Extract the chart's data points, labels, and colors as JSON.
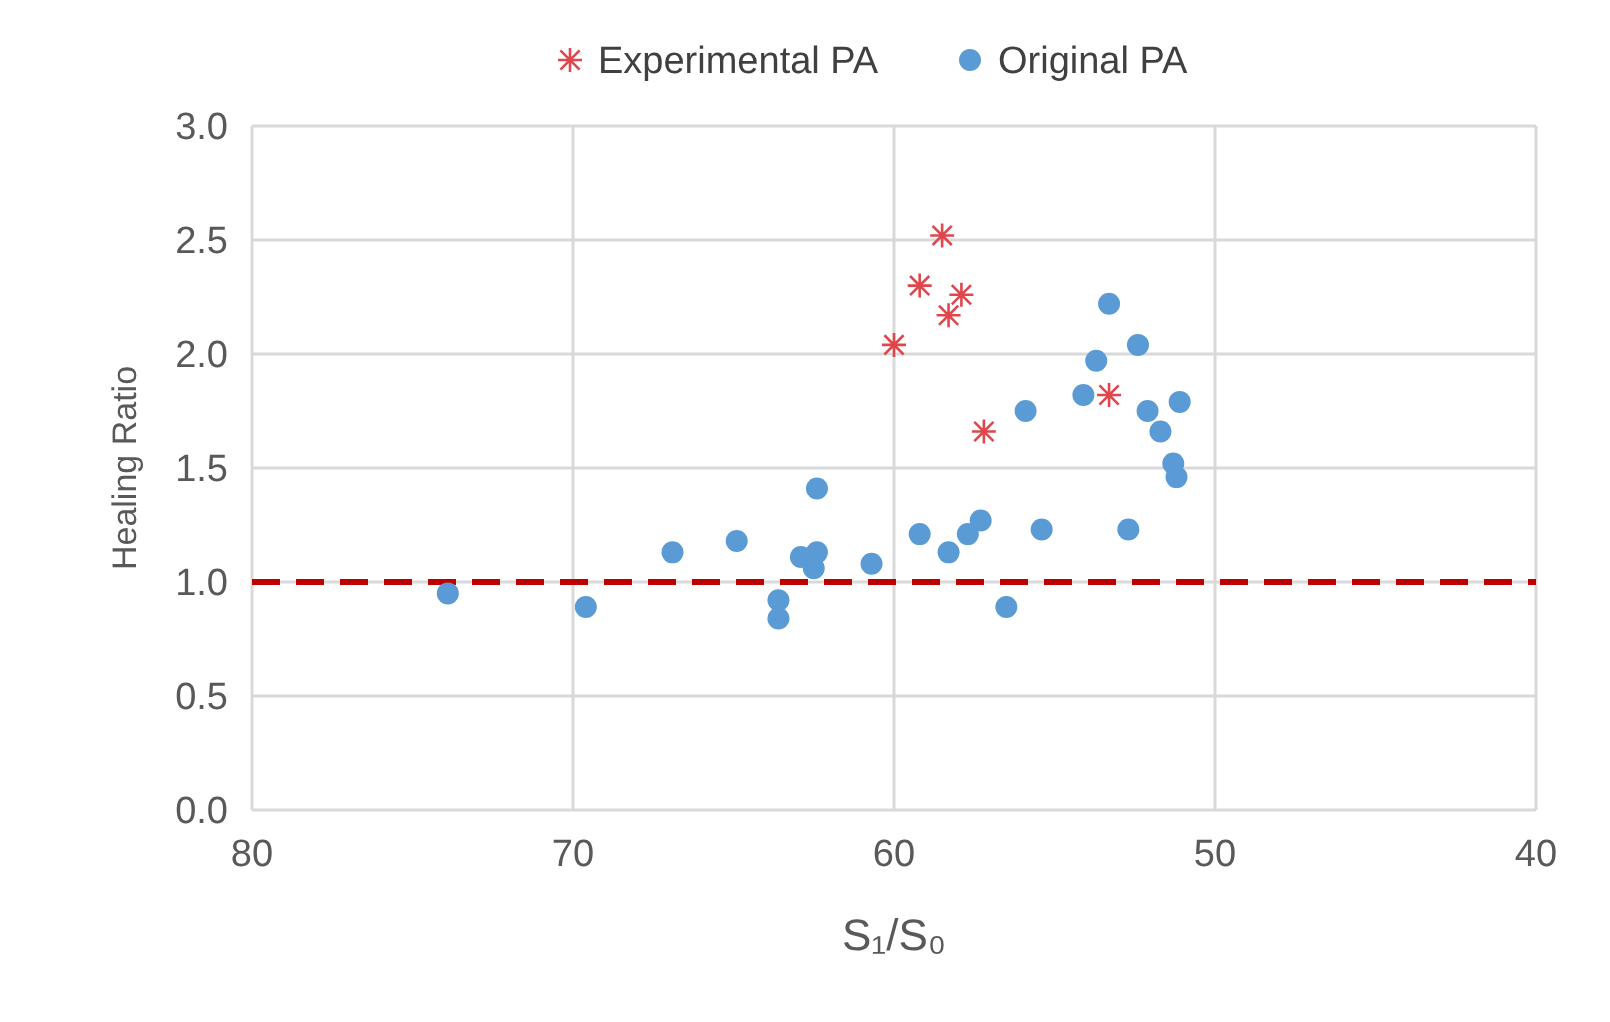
{
  "chart_data": {
    "type": "scatter",
    "xlabel": "S₁/S₀",
    "ylabel": "Healing Ratio",
    "xlim": [
      80,
      40
    ],
    "xticks": [
      80,
      70,
      60,
      50,
      40
    ],
    "ylim": [
      0,
      3
    ],
    "yticks": [
      {
        "value": 0,
        "label": "0.0"
      },
      {
        "value": 0.5,
        "label": "0.5"
      },
      {
        "value": 1,
        "label": "1.0"
      },
      {
        "value": 1.5,
        "label": "1.5"
      },
      {
        "value": 2,
        "label": "2.0"
      },
      {
        "value": 2.5,
        "label": "2.5"
      },
      {
        "value": 3,
        "label": "3.0"
      }
    ],
    "grid": true,
    "legend": "top",
    "ref_lines": [
      {
        "axis": "y",
        "value": 1,
        "color": "#c00000",
        "line_style": "dashed"
      }
    ],
    "series": [
      {
        "name": "Experimental PA",
        "color": "#e0474c",
        "marker": "cross",
        "x": [
          60.0,
          59.2,
          58.5,
          58.3,
          57.9,
          57.2,
          53.3
        ],
        "values": [
          2.04,
          2.3,
          2.52,
          2.17,
          2.26,
          1.66,
          1.82
        ]
      },
      {
        "name": "Original PA",
        "color": "#5b9bd5",
        "marker": "circle",
        "x": [
          73.9,
          69.6,
          66.9,
          64.9,
          63.6,
          63.6,
          62.9,
          62.5,
          62.4,
          62.4,
          60.7,
          59.2,
          58.3,
          57.7,
          57.3,
          56.5,
          55.4,
          55.9,
          54.1,
          53.7,
          53.3,
          52.4,
          52.1,
          51.7,
          51.3,
          51.2,
          51.1,
          52.7
        ],
        "values": [
          0.95,
          0.89,
          1.13,
          1.18,
          0.92,
          0.84,
          1.11,
          1.06,
          1.13,
          1.41,
          1.08,
          1.21,
          1.13,
          1.21,
          1.27,
          0.89,
          1.23,
          1.75,
          1.82,
          1.97,
          2.22,
          2.04,
          1.75,
          1.66,
          1.52,
          1.46,
          1.79,
          1.23
        ]
      }
    ]
  }
}
